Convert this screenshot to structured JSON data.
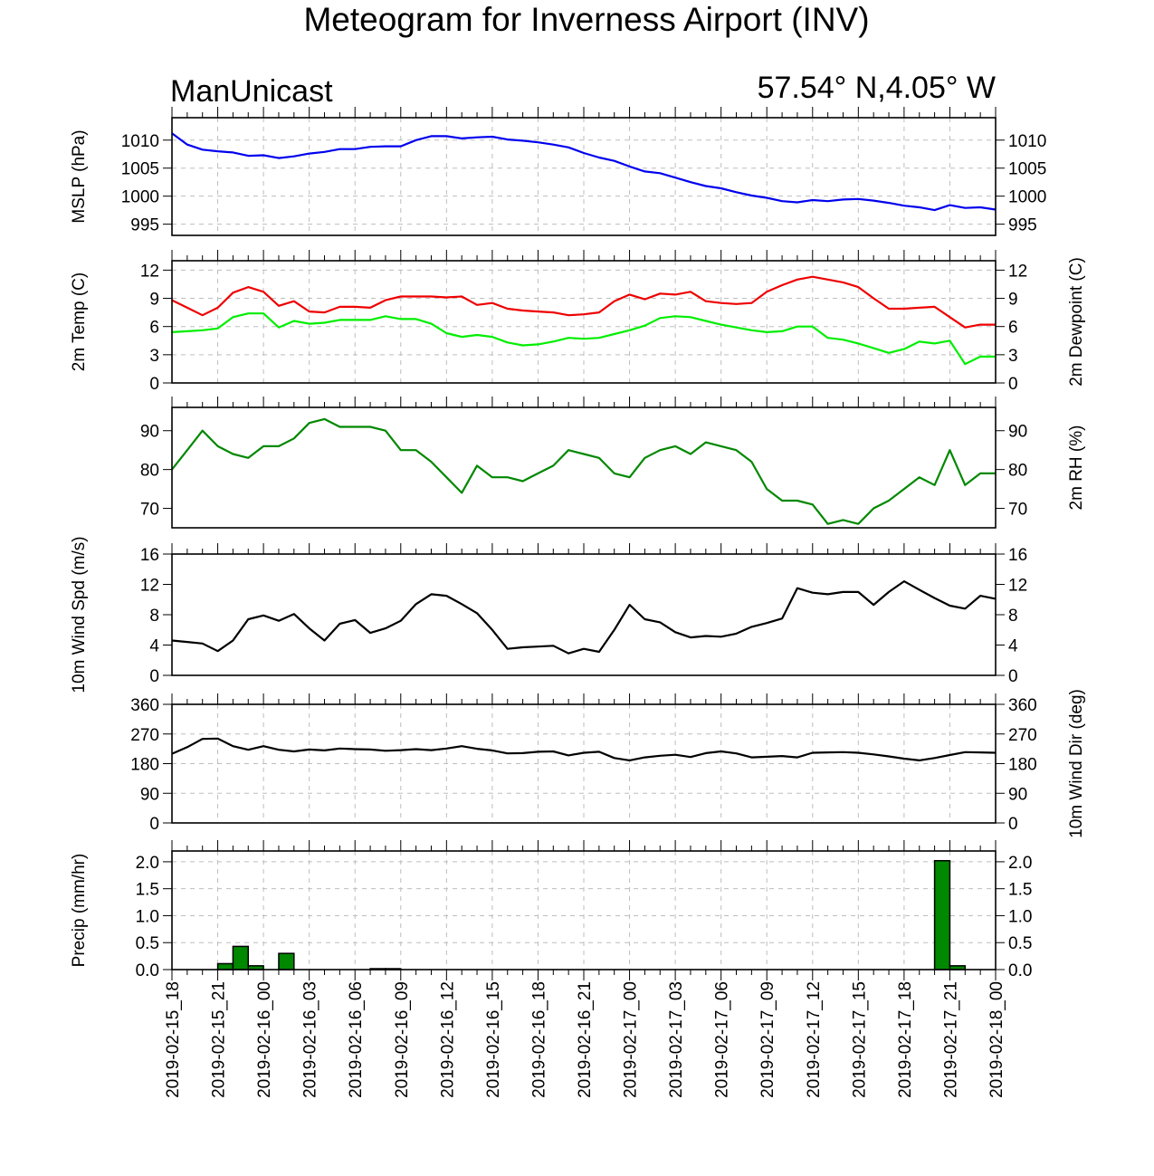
{
  "title": "Meteogram for Inverness Airport (INV)",
  "model": "ManUnicast",
  "location": "57.54° N,4.05° W",
  "time_labels": [
    "2019-02-15_18",
    "2019-02-15_21",
    "2019-02-16_00",
    "2019-02-16_03",
    "2019-02-16_06",
    "2019-02-16_09",
    "2019-02-16_12",
    "2019-02-16_15",
    "2019-02-16_18",
    "2019-02-16_21",
    "2019-02-17_00",
    "2019-02-17_03",
    "2019-02-17_06",
    "2019-02-17_09",
    "2019-02-17_12",
    "2019-02-17_15",
    "2019-02-17_18",
    "2019-02-17_21",
    "2019-02-18_00"
  ],
  "chart_data": [
    {
      "id": "mslp",
      "type": "line",
      "ylabel_left": "MSLP (hPa)",
      "ylabel_right": "",
      "ylim": [
        993,
        1014
      ],
      "yticks": [
        995,
        1000,
        1005,
        1010
      ],
      "xlim": [
        0,
        54
      ],
      "grid": true,
      "series": [
        {
          "color": "#0000ee",
          "x": [
            0,
            1,
            2,
            3,
            4,
            5,
            6,
            7,
            8,
            9,
            10,
            11,
            12,
            13,
            14,
            15,
            16,
            17,
            18,
            19,
            20,
            21,
            22,
            23,
            24,
            25,
            26,
            27,
            28,
            29,
            30,
            31,
            32,
            33,
            34,
            35,
            36,
            37,
            38,
            39,
            40,
            41,
            42,
            43,
            44,
            45,
            46,
            47,
            48,
            49,
            50,
            51,
            52,
            53,
            54
          ],
          "values": [
            1011.2,
            1009.2,
            1008.3,
            1008.0,
            1007.8,
            1007.2,
            1007.3,
            1006.8,
            1007.1,
            1007.6,
            1007.9,
            1008.4,
            1008.4,
            1008.8,
            1008.9,
            1008.9,
            1010.0,
            1010.7,
            1010.7,
            1010.3,
            1010.5,
            1010.6,
            1010.1,
            1009.9,
            1009.6,
            1009.2,
            1008.7,
            1007.7,
            1006.9,
            1006.3,
            1005.3,
            1004.4,
            1004.1,
            1003.3,
            1002.5,
            1001.8,
            1001.4,
            1000.7,
            1000.1,
            999.7,
            999.1,
            998.9,
            999.3,
            999.1,
            999.4,
            999.5,
            999.2,
            998.8,
            998.3,
            998.0,
            997.5,
            998.4,
            997.9,
            998.0,
            997.6
          ]
        }
      ]
    },
    {
      "id": "temp",
      "type": "line",
      "ylabel_left": "2m Temp (C)",
      "ylabel_right": "2m Dewpoint (C)",
      "ylim": [
        0,
        13
      ],
      "yticks": [
        0,
        3,
        6,
        9,
        12
      ],
      "xlim": [
        0,
        54
      ],
      "grid": true,
      "series": [
        {
          "color": "#ee0000",
          "x": [
            0,
            1,
            2,
            3,
            4,
            5,
            6,
            7,
            8,
            9,
            10,
            11,
            12,
            13,
            14,
            15,
            16,
            17,
            18,
            19,
            20,
            21,
            22,
            23,
            24,
            25,
            26,
            27,
            28,
            29,
            30,
            31,
            32,
            33,
            34,
            35,
            36,
            37,
            38,
            39,
            40,
            41,
            42,
            43,
            44,
            45,
            46,
            47,
            48,
            49,
            50,
            51,
            52,
            53,
            54
          ],
          "values": [
            8.8,
            8.0,
            7.2,
            8.0,
            9.6,
            10.2,
            9.7,
            8.2,
            8.7,
            7.6,
            7.5,
            8.1,
            8.1,
            8.0,
            8.8,
            9.2,
            9.2,
            9.2,
            9.1,
            9.2,
            8.3,
            8.5,
            7.9,
            7.7,
            7.6,
            7.5,
            7.2,
            7.3,
            7.5,
            8.7,
            9.4,
            8.9,
            9.5,
            9.4,
            9.7,
            8.7,
            8.5,
            8.4,
            8.5,
            9.7,
            10.4,
            11.0,
            11.3,
            11.0,
            10.7,
            10.2,
            9.0,
            7.9,
            7.9,
            8.0,
            8.1,
            7.0,
            5.9,
            6.2,
            6.2
          ]
        },
        {
          "color": "#00ee00",
          "x": [
            0,
            1,
            2,
            3,
            4,
            5,
            6,
            7,
            8,
            9,
            10,
            11,
            12,
            13,
            14,
            15,
            16,
            17,
            18,
            19,
            20,
            21,
            22,
            23,
            24,
            25,
            26,
            27,
            28,
            29,
            30,
            31,
            32,
            33,
            34,
            35,
            36,
            37,
            38,
            39,
            40,
            41,
            42,
            43,
            44,
            45,
            46,
            47,
            48,
            49,
            50,
            51,
            52,
            53,
            54
          ],
          "values": [
            5.4,
            5.5,
            5.6,
            5.8,
            7.0,
            7.4,
            7.4,
            5.9,
            6.6,
            6.3,
            6.4,
            6.7,
            6.7,
            6.7,
            7.1,
            6.8,
            6.8,
            6.3,
            5.3,
            4.9,
            5.1,
            4.9,
            4.3,
            4.0,
            4.1,
            4.4,
            4.8,
            4.7,
            4.8,
            5.2,
            5.6,
            6.1,
            6.9,
            7.1,
            7.0,
            6.6,
            6.2,
            5.9,
            5.6,
            5.4,
            5.5,
            6.0,
            6.0,
            4.8,
            4.6,
            4.2,
            3.7,
            3.2,
            3.6,
            4.4,
            4.2,
            4.5,
            2.0,
            2.8,
            2.8
          ]
        }
      ]
    },
    {
      "id": "rh",
      "type": "line",
      "ylabel_left": "",
      "ylabel_right": "2m RH (%)",
      "ylim": [
        65,
        96
      ],
      "yticks": [
        70,
        80,
        90
      ],
      "xlim": [
        0,
        54
      ],
      "grid": false,
      "series": [
        {
          "color": "#008800",
          "x": [
            0,
            1,
            2,
            3,
            4,
            5,
            6,
            7,
            8,
            9,
            10,
            11,
            12,
            13,
            14,
            15,
            16,
            17,
            18,
            19,
            20,
            21,
            22,
            23,
            24,
            25,
            26,
            27,
            28,
            29,
            30,
            31,
            32,
            33,
            34,
            35,
            36,
            37,
            38,
            39,
            40,
            41,
            42,
            43,
            44,
            45,
            46,
            47,
            48,
            49,
            50,
            51,
            52,
            53,
            54
          ],
          "values": [
            80,
            85,
            90,
            86,
            84,
            83,
            86,
            86,
            88,
            92,
            93,
            91,
            91,
            91,
            90,
            85,
            85,
            82,
            78,
            74,
            81,
            78,
            78,
            77,
            79,
            81,
            85,
            84,
            83,
            79,
            78,
            83,
            85,
            86,
            84,
            87,
            86,
            85,
            82,
            75,
            72,
            72,
            71,
            66,
            67,
            66,
            70,
            72,
            75,
            78,
            76,
            85,
            76,
            79,
            79
          ]
        }
      ]
    },
    {
      "id": "wspd",
      "type": "line",
      "ylabel_left": "10m Wind Spd (m/s)",
      "ylabel_right": "",
      "ylim": [
        0,
        16
      ],
      "yticks": [
        0,
        4,
        8,
        12,
        16
      ],
      "xlim": [
        0,
        54
      ],
      "grid": false,
      "series": [
        {
          "color": "#000000",
          "x": [
            0,
            1,
            2,
            3,
            4,
            5,
            6,
            7,
            8,
            9,
            10,
            11,
            12,
            13,
            14,
            15,
            16,
            17,
            18,
            19,
            20,
            21,
            22,
            23,
            24,
            25,
            26,
            27,
            28,
            29,
            30,
            31,
            32,
            33,
            34,
            35,
            36,
            37,
            38,
            39,
            40,
            41,
            42,
            43,
            44,
            45,
            46,
            47,
            48,
            49,
            50,
            51,
            52,
            53,
            54
          ],
          "values": [
            4.6,
            4.4,
            4.2,
            3.2,
            4.6,
            7.4,
            7.9,
            7.2,
            8.1,
            6.2,
            4.6,
            6.8,
            7.3,
            5.6,
            6.2,
            7.2,
            9.4,
            10.7,
            10.5,
            9.4,
            8.2,
            6.0,
            3.5,
            3.7,
            3.8,
            3.9,
            2.9,
            3.5,
            3.1,
            6.0,
            9.3,
            7.4,
            7.0,
            5.7,
            5.0,
            5.2,
            5.1,
            5.5,
            6.4,
            6.9,
            7.5,
            11.5,
            10.9,
            10.7,
            11.0,
            11.0,
            9.3,
            11.0,
            12.4,
            11.3,
            10.2,
            9.2,
            8.8,
            10.5,
            10.1
          ]
        }
      ]
    },
    {
      "id": "wdir",
      "type": "line",
      "ylabel_left": "",
      "ylabel_right": "10m Wind Dir (deg)",
      "ylim": [
        0,
        360
      ],
      "yticks": [
        0,
        90,
        180,
        270,
        360
      ],
      "xlim": [
        0,
        54
      ],
      "grid": true,
      "series": [
        {
          "color": "#000000",
          "x": [
            0,
            1,
            2,
            3,
            4,
            5,
            6,
            7,
            8,
            9,
            10,
            11,
            12,
            13,
            14,
            15,
            16,
            17,
            18,
            19,
            20,
            21,
            22,
            23,
            24,
            25,
            26,
            27,
            28,
            29,
            30,
            31,
            32,
            33,
            34,
            35,
            36,
            37,
            38,
            39,
            40,
            41,
            42,
            43,
            44,
            45,
            46,
            47,
            48,
            49,
            50,
            51,
            52,
            53,
            54
          ],
          "values": [
            210,
            230,
            255,
            256,
            233,
            222,
            233,
            222,
            217,
            223,
            220,
            226,
            224,
            223,
            219,
            221,
            224,
            221,
            226,
            233,
            225,
            220,
            211,
            212,
            216,
            217,
            205,
            213,
            216,
            197,
            190,
            199,
            204,
            207,
            200,
            212,
            217,
            211,
            199,
            201,
            203,
            199,
            213,
            214,
            215,
            213,
            208,
            202,
            195,
            190,
            197,
            206,
            215,
            214,
            213
          ]
        }
      ]
    },
    {
      "id": "precip",
      "type": "bar",
      "ylabel_left": "Precip (mm/hr)",
      "ylabel_right": "",
      "ylim": [
        0,
        2.2
      ],
      "yticks": [
        0.0,
        0.5,
        1.0,
        1.5,
        2.0
      ],
      "ytick_labels": [
        "0.0",
        "0.5",
        "1.0",
        "1.5",
        "2.0"
      ],
      "xlim": [
        0,
        54
      ],
      "grid": true,
      "bar_color": "#008800",
      "bars": [
        {
          "x": 3.5,
          "value": 0.11
        },
        {
          "x": 4.5,
          "value": 0.43
        },
        {
          "x": 5.5,
          "value": 0.07
        },
        {
          "x": 7.5,
          "value": 0.3
        },
        {
          "x": 13.5,
          "value": 0.01
        },
        {
          "x": 14.5,
          "value": 0.01
        },
        {
          "x": 50.5,
          "value": 2.02
        },
        {
          "x": 51.5,
          "value": 0.07
        }
      ]
    }
  ]
}
